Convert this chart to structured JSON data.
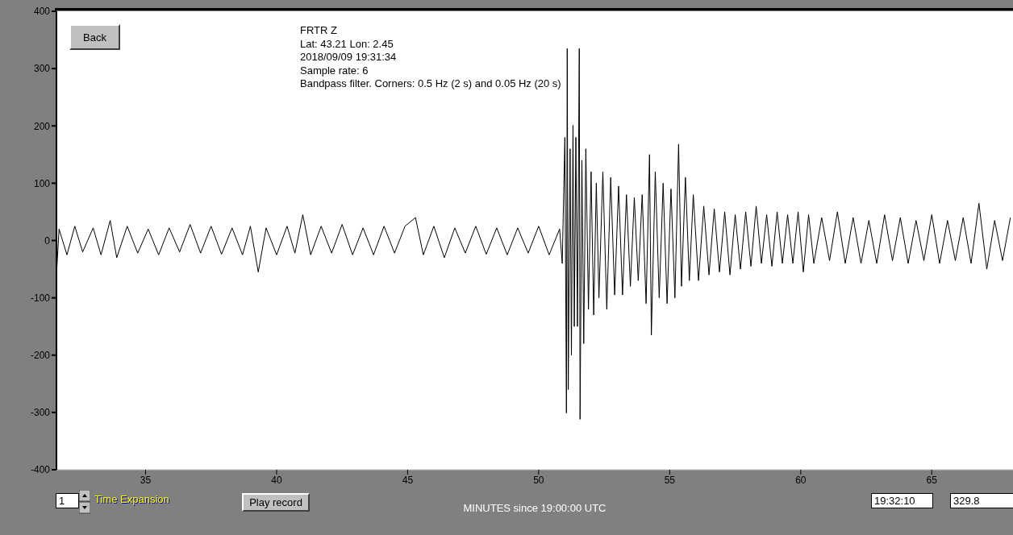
{
  "chart_data": {
    "type": "line",
    "title": "FRTR  Z",
    "xlabel": "MINUTES since 19:00:00 UTC",
    "annotations": [
      "Lat: 43.21 Lon: 2.45",
      "2018/09/09 19:31:34",
      "Sample rate: 6",
      "Bandpass filter. Corners: 0.5 Hz (2 s) and 0.05 Hz (20 s)",
      "Back",
      "1",
      "Time Expansion",
      "Play record",
      "19:32:10",
      "329.8"
    ],
    "x": [
      31.6,
      31.7,
      32.0,
      32.3,
      32.6,
      33.0,
      33.3,
      33.65,
      33.9,
      34.3,
      34.7,
      35.1,
      35.5,
      35.9,
      36.3,
      36.7,
      37.1,
      37.5,
      37.9,
      38.3,
      38.7,
      39.0,
      39.3,
      39.6,
      40.0,
      40.4,
      40.7,
      41.0,
      41.3,
      41.7,
      42.1,
      42.5,
      42.9,
      43.3,
      43.7,
      44.1,
      44.5,
      44.9,
      45.3,
      45.6,
      46.0,
      46.4,
      46.8,
      47.2,
      47.6,
      48.0,
      48.4,
      48.8,
      49.2,
      49.6,
      50.0,
      50.4,
      50.8,
      50.9,
      51.0,
      51.06,
      51.09,
      51.13,
      51.2,
      51.25,
      51.31,
      51.36,
      51.42,
      51.48,
      51.55,
      51.58,
      51.65,
      51.72,
      51.8,
      51.9,
      52.0,
      52.1,
      52.2,
      52.3,
      52.45,
      52.6,
      52.75,
      52.9,
      53.05,
      53.2,
      53.35,
      53.5,
      53.65,
      53.8,
      53.95,
      54.1,
      54.23,
      54.3,
      54.45,
      54.6,
      54.75,
      54.9,
      55.05,
      55.2,
      55.34,
      55.45,
      55.6,
      55.75,
      55.9,
      56.1,
      56.3,
      56.5,
      56.7,
      56.9,
      57.1,
      57.3,
      57.5,
      57.7,
      57.9,
      58.1,
      58.3,
      58.5,
      58.7,
      58.9,
      59.1,
      59.3,
      59.5,
      59.7,
      59.9,
      60.1,
      60.3,
      60.5,
      60.8,
      61.1,
      61.4,
      61.7,
      62.0,
      62.3,
      62.6,
      62.9,
      63.2,
      63.5,
      63.8,
      64.1,
      64.4,
      64.7,
      65.0,
      65.3,
      65.6,
      65.9,
      66.2,
      66.5,
      66.8,
      67.1,
      67.4,
      67.7,
      68.0
    ],
    "series": [
      {
        "color": "#000000",
        "values": [
          -60,
          20,
          -25,
          25,
          -20,
          22,
          -25,
          35,
          -30,
          25,
          -22,
          20,
          -25,
          22,
          -20,
          28,
          -22,
          25,
          -24,
          22,
          -25,
          25,
          -55,
          22,
          -25,
          25,
          -22,
          45,
          -25,
          25,
          -22,
          28,
          -25,
          22,
          -25,
          25,
          -22,
          25,
          40,
          -25,
          25,
          -30,
          22,
          -22,
          25,
          -24,
          22,
          -25,
          22,
          -22,
          25,
          -25,
          20,
          -40,
          180,
          -301,
          335,
          -260,
          160,
          -200,
          201,
          -150,
          180,
          -150,
          335,
          -312,
          140,
          -180,
          160,
          -120,
          120,
          -130,
          100,
          -100,
          120,
          -120,
          110,
          -95,
          95,
          -95,
          80,
          -80,
          75,
          -70,
          80,
          -110,
          150,
          -165,
          120,
          -100,
          100,
          -110,
          90,
          -100,
          168,
          -80,
          110,
          -70,
          80,
          -70,
          60,
          -60,
          55,
          -55,
          50,
          -60,
          45,
          -50,
          50,
          -45,
          60,
          -40,
          45,
          -45,
          50,
          -40,
          45,
          -40,
          50,
          -55,
          45,
          -40,
          40,
          -35,
          50,
          -40,
          40,
          -40,
          35,
          -40,
          45,
          -35,
          40,
          -40,
          35,
          -35,
          45,
          -40,
          35,
          -35,
          40,
          -40,
          65,
          -50,
          35,
          -35,
          40
        ]
      }
    ],
    "xlim": [
      31.6,
      68.1
    ],
    "ylim": [
      -400,
      400
    ],
    "xticks": [
      35,
      40,
      45,
      50,
      55,
      60,
      65
    ],
    "yticks": [
      -400,
      -300,
      -200,
      -100,
      0,
      100,
      200,
      300,
      400
    ],
    "grid": false,
    "legend": false,
    "marker": "none",
    "line_style": "solid"
  }
}
